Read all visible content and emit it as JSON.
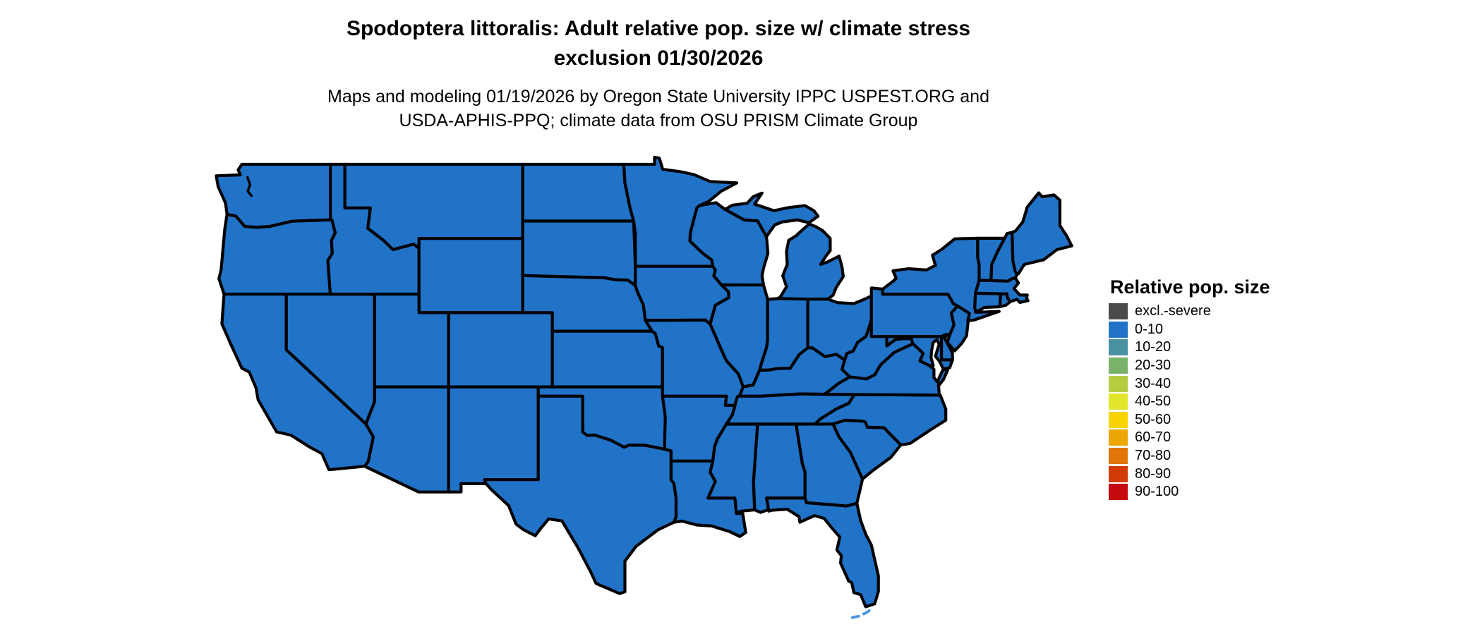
{
  "title": {
    "line1": "Spodoptera littoralis: Adult relative pop. size w/ climate stress",
    "line2": "exclusion 01/30/2026"
  },
  "subtitle": {
    "line1": "Maps and modeling 01/19/2026 by Oregon State University IPPC USPEST.ORG and",
    "line2": "USDA-APHIS-PPQ; climate data from OSU PRISM Climate Group"
  },
  "legend": {
    "title": "Relative pop. size",
    "entries": [
      {
        "label": "excl.-severe",
        "color": "#4a4a4a"
      },
      {
        "label": "0-10",
        "color": "#2173c8"
      },
      {
        "label": "10-20",
        "color": "#4892a2"
      },
      {
        "label": "20-30",
        "color": "#7ab26b"
      },
      {
        "label": "30-40",
        "color": "#b5cc40"
      },
      {
        "label": "40-50",
        "color": "#e2e62a"
      },
      {
        "label": "50-60",
        "color": "#f9d403"
      },
      {
        "label": "60-70",
        "color": "#eca706"
      },
      {
        "label": "70-80",
        "color": "#e17509"
      },
      {
        "label": "80-90",
        "color": "#d23c08"
      },
      {
        "label": "90-100",
        "color": "#c50b0e"
      }
    ]
  },
  "map": {
    "region_label": "Conterminous United States",
    "border_color": "#000000",
    "background_color": "#ffffff",
    "water_detail_color": "#4a97dd",
    "all_states_value": "0-10",
    "states": [
      {
        "id": "WA",
        "name": "Washington",
        "category": "0-10"
      },
      {
        "id": "OR",
        "name": "Oregon",
        "category": "0-10"
      },
      {
        "id": "CA",
        "name": "California",
        "category": "0-10"
      },
      {
        "id": "NV",
        "name": "Nevada",
        "category": "0-10"
      },
      {
        "id": "ID",
        "name": "Idaho",
        "category": "0-10"
      },
      {
        "id": "MT",
        "name": "Montana",
        "category": "0-10"
      },
      {
        "id": "WY",
        "name": "Wyoming",
        "category": "0-10"
      },
      {
        "id": "UT",
        "name": "Utah",
        "category": "0-10"
      },
      {
        "id": "CO",
        "name": "Colorado",
        "category": "0-10"
      },
      {
        "id": "AZ",
        "name": "Arizona",
        "category": "0-10"
      },
      {
        "id": "NM",
        "name": "New Mexico",
        "category": "0-10"
      },
      {
        "id": "ND",
        "name": "North Dakota",
        "category": "0-10"
      },
      {
        "id": "SD",
        "name": "South Dakota",
        "category": "0-10"
      },
      {
        "id": "NE",
        "name": "Nebraska",
        "category": "0-10"
      },
      {
        "id": "KS",
        "name": "Kansas",
        "category": "0-10"
      },
      {
        "id": "OK",
        "name": "Oklahoma",
        "category": "0-10"
      },
      {
        "id": "TX",
        "name": "Texas",
        "category": "0-10"
      },
      {
        "id": "MN",
        "name": "Minnesota",
        "category": "0-10"
      },
      {
        "id": "IA",
        "name": "Iowa",
        "category": "0-10"
      },
      {
        "id": "WI",
        "name": "Wisconsin",
        "category": "0-10"
      },
      {
        "id": "IL",
        "name": "Illinois",
        "category": "0-10"
      },
      {
        "id": "IN",
        "name": "Indiana",
        "category": "0-10"
      },
      {
        "id": "OH",
        "name": "Ohio",
        "category": "0-10"
      },
      {
        "id": "MI",
        "name": "Michigan",
        "category": "0-10"
      },
      {
        "id": "MO",
        "name": "Missouri",
        "category": "0-10"
      },
      {
        "id": "KY",
        "name": "Kentucky",
        "category": "0-10"
      },
      {
        "id": "TN",
        "name": "Tennessee",
        "category": "0-10"
      },
      {
        "id": "AR",
        "name": "Arkansas",
        "category": "0-10"
      },
      {
        "id": "LA",
        "name": "Louisiana",
        "category": "0-10"
      },
      {
        "id": "MS",
        "name": "Mississippi",
        "category": "0-10"
      },
      {
        "id": "AL",
        "name": "Alabama",
        "category": "0-10"
      },
      {
        "id": "GA",
        "name": "Georgia",
        "category": "0-10"
      },
      {
        "id": "FL",
        "name": "Florida",
        "category": "0-10"
      },
      {
        "id": "SC",
        "name": "South Carolina",
        "category": "0-10"
      },
      {
        "id": "NC",
        "name": "North Carolina",
        "category": "0-10"
      },
      {
        "id": "VA",
        "name": "Virginia",
        "category": "0-10"
      },
      {
        "id": "WV",
        "name": "West Virginia",
        "category": "0-10"
      },
      {
        "id": "MD",
        "name": "Maryland",
        "category": "0-10"
      },
      {
        "id": "DE",
        "name": "Delaware",
        "category": "0-10"
      },
      {
        "id": "PA",
        "name": "Pennsylvania",
        "category": "0-10"
      },
      {
        "id": "NJ",
        "name": "New Jersey",
        "category": "0-10"
      },
      {
        "id": "NY",
        "name": "New York",
        "category": "0-10"
      },
      {
        "id": "CT",
        "name": "Connecticut",
        "category": "0-10"
      },
      {
        "id": "RI",
        "name": "Rhode Island",
        "category": "0-10"
      },
      {
        "id": "MA",
        "name": "Massachusetts",
        "category": "0-10"
      },
      {
        "id": "VT",
        "name": "Vermont",
        "category": "0-10"
      },
      {
        "id": "NH",
        "name": "New Hampshire",
        "category": "0-10"
      },
      {
        "id": "ME",
        "name": "Maine",
        "category": "0-10"
      }
    ]
  }
}
